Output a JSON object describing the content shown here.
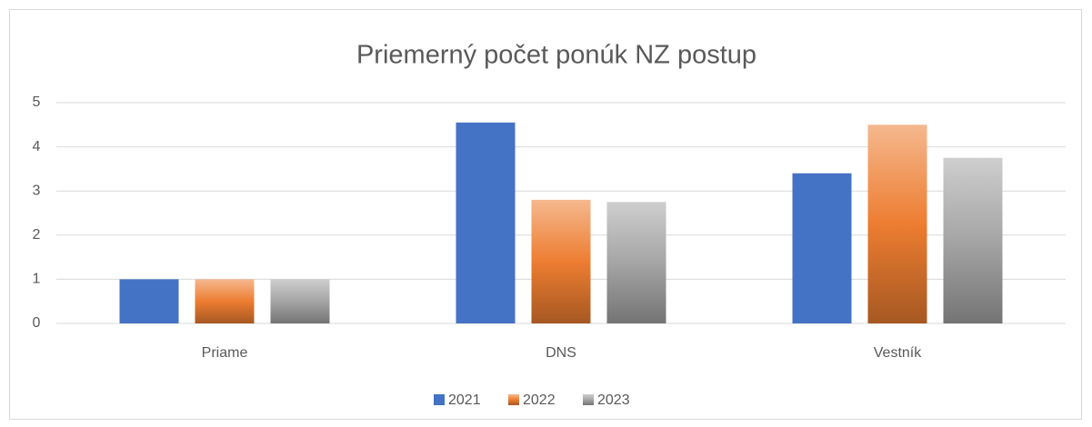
{
  "chart_data": {
    "type": "bar",
    "title": "Priemerný počet ponúk NZ postup",
    "categories": [
      "Priame",
      "DNS",
      "Vestník"
    ],
    "series": [
      {
        "name": "2021",
        "color": "#4472c4",
        "values": [
          1,
          4.55,
          3.4
        ]
      },
      {
        "name": "2022",
        "color": "#ed7d31",
        "fill": "gradient",
        "values": [
          1,
          2.8,
          4.5
        ]
      },
      {
        "name": "2023",
        "color": "#a5a5a5",
        "fill": "gradient",
        "values": [
          1,
          2.75,
          3.75
        ]
      }
    ],
    "ylim": [
      0,
      5
    ],
    "yticks": [
      0,
      1,
      2,
      3,
      4,
      5
    ],
    "grid": true,
    "legend": "bottom"
  }
}
